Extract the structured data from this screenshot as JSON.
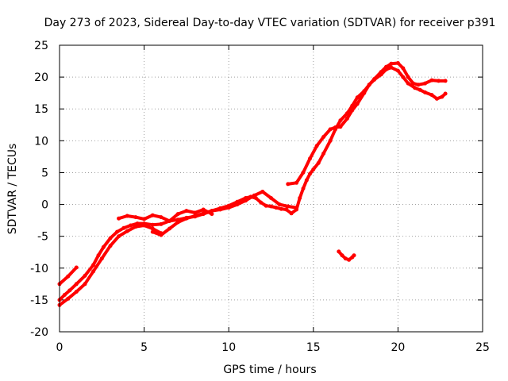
{
  "chart_data": {
    "type": "scatter",
    "title": "Day 273 of 2023, Sidereal Day-to-day VTEC variation (SDTVAR) for receiver p391",
    "xlabel": "GPS time / hours",
    "ylabel": "SDTVAR / TECUs",
    "xlim": [
      0,
      25
    ],
    "ylim": [
      -20,
      25
    ],
    "xticks": [
      "0",
      "5",
      "10",
      "15",
      "20",
      "25"
    ],
    "yticks": [
      "25",
      "20",
      "15",
      "10",
      "5",
      "0",
      "-5",
      "-10",
      "-15",
      "-20"
    ],
    "grid": true,
    "series_color": "#ff0000",
    "series": [
      {
        "x": [
          0.0,
          0.5,
          1.0
        ],
        "y": [
          -12.5,
          -11.3,
          -9.9
        ]
      },
      {
        "x": [
          0.0,
          0.3,
          0.6,
          1.0,
          1.5,
          2.0,
          2.3,
          2.6,
          3.0,
          3.4,
          3.8,
          4.2,
          4.6,
          5.0,
          5.5,
          6.0,
          6.5,
          7.0,
          7.5,
          8.0,
          8.5,
          9.0,
          9.5,
          10.0,
          10.5,
          11.0,
          11.3,
          11.6,
          11.9,
          12.2,
          12.5,
          12.8,
          13.1,
          13.4,
          13.7,
          14.0,
          14.2,
          14.4,
          14.6,
          14.8,
          15.0,
          15.3,
          15.6,
          16.0,
          16.3,
          16.6,
          17.0,
          17.3,
          17.6,
          18.0,
          18.3,
          18.6,
          19.0,
          19.3,
          19.6,
          20.0,
          20.3,
          20.6,
          21.0,
          21.3,
          21.6,
          22.0,
          22.3,
          22.6,
          22.8
        ],
        "y": [
          -15.0,
          -14.2,
          -13.5,
          -12.5,
          -11.2,
          -9.5,
          -8.0,
          -6.7,
          -5.3,
          -4.3,
          -3.7,
          -3.3,
          -3.0,
          -3.0,
          -3.2,
          -3.1,
          -2.6,
          -2.4,
          -2.1,
          -1.9,
          -1.5,
          -1.0,
          -0.6,
          -0.2,
          0.4,
          1.0,
          1.2,
          1.0,
          0.3,
          -0.2,
          -0.3,
          -0.5,
          -0.7,
          -0.8,
          -1.4,
          -0.8,
          1.0,
          2.5,
          3.8,
          4.8,
          5.5,
          6.5,
          8.0,
          10.0,
          11.8,
          13.2,
          14.3,
          15.5,
          16.8,
          17.8,
          18.8,
          19.6,
          20.4,
          21.2,
          21.5,
          21.0,
          20.0,
          19.0,
          18.3,
          18.0,
          17.6,
          17.2,
          16.6,
          16.9,
          17.4
        ]
      },
      {
        "x": [
          0.0,
          0.5,
          1.0,
          1.5,
          2.0,
          2.5,
          3.0,
          3.5,
          4.0,
          4.5,
          5.0,
          5.5,
          6.0
        ],
        "y": [
          -15.8,
          -14.8,
          -13.7,
          -12.5,
          -10.5,
          -8.5,
          -6.5,
          -5.0,
          -4.2,
          -3.5,
          -3.3,
          -3.8,
          -4.5
        ]
      },
      {
        "x": [
          3.5,
          4.0,
          4.5,
          5.0,
          5.5,
          6.0,
          6.5,
          7.0,
          7.5,
          8.0,
          8.5,
          9.0
        ],
        "y": [
          -2.2,
          -1.8,
          -2.0,
          -2.3,
          -1.7,
          -2.0,
          -2.6,
          -1.5,
          -1.0,
          -1.3,
          -0.8,
          -1.5
        ]
      },
      {
        "x": [
          5.5,
          6.0,
          6.5,
          7.0,
          7.5,
          8.0,
          8.5,
          9.0,
          9.5,
          10.0,
          10.5,
          11.0,
          11.5,
          12.0,
          12.5,
          13.0,
          13.5,
          14.0
        ],
        "y": [
          -4.3,
          -4.8,
          -3.8,
          -2.8,
          -2.2,
          -1.8,
          -1.4,
          -1.0,
          -0.8,
          -0.5,
          0.0,
          0.6,
          1.4,
          2.0,
          1.0,
          0.0,
          -0.3,
          -0.5
        ]
      },
      {
        "x": [
          13.5,
          14.0,
          14.4,
          14.8,
          15.2,
          15.6,
          16.0,
          16.3,
          16.6,
          17.0,
          17.3,
          17.6,
          18.0,
          18.3,
          18.6,
          19.0,
          19.3,
          19.6,
          20.0,
          20.3,
          20.6,
          20.9,
          21.2,
          21.6,
          22.0,
          22.4,
          22.8
        ],
        "y": [
          3.2,
          3.4,
          5.0,
          7.2,
          9.2,
          10.6,
          11.8,
          12.1,
          12.2,
          13.5,
          14.8,
          15.8,
          17.5,
          18.8,
          19.7,
          20.8,
          21.6,
          22.1,
          22.2,
          21.4,
          20.0,
          19.0,
          18.8,
          19.0,
          19.5,
          19.4,
          19.4
        ]
      },
      {
        "x": [
          16.5,
          16.7,
          16.9,
          17.1,
          17.3,
          17.4
        ],
        "y": [
          -7.4,
          -8.0,
          -8.5,
          -8.7,
          -8.3,
          -8.0
        ]
      }
    ]
  }
}
